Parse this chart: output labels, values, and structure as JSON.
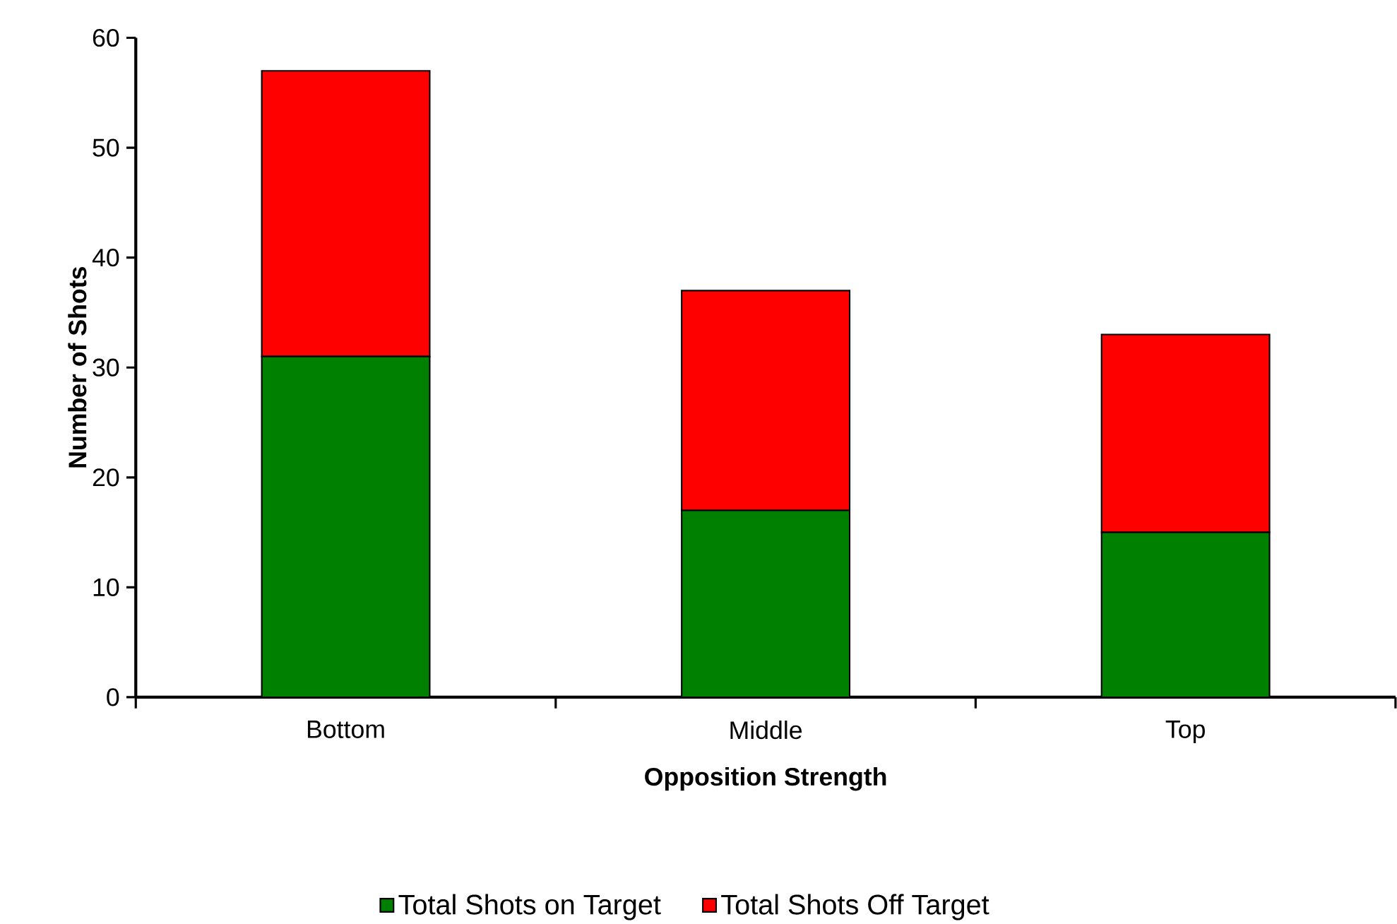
{
  "chart_data": {
    "type": "bar",
    "stacked": true,
    "xlabel": "Opposition Strength",
    "ylabel": "Number of Shots",
    "categories": [
      "Bottom",
      "Middle",
      "Top"
    ],
    "series": [
      {
        "name": "Total Shots on Target",
        "color": "#008000",
        "values": [
          31,
          17,
          15
        ]
      },
      {
        "name": "Total Shots Off Target",
        "color": "#ff0000",
        "values": [
          26,
          20,
          18
        ]
      }
    ],
    "ylim": [
      0,
      60
    ],
    "yticks": [
      0,
      10,
      20,
      30,
      40,
      50,
      60
    ],
    "legend": "bottom"
  }
}
